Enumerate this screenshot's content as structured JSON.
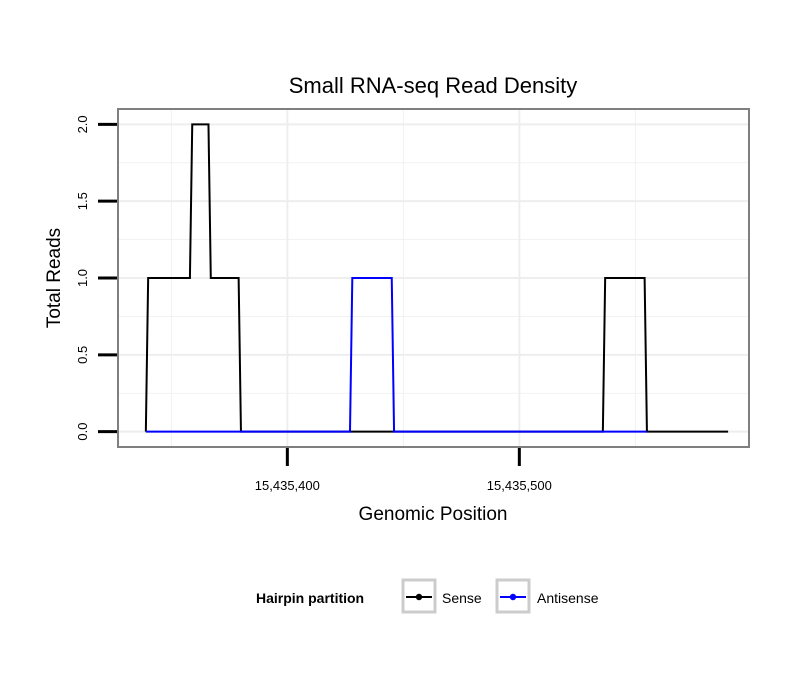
{
  "colors": {
    "sense": "#000000",
    "antisense": "#0000ff",
    "grid": "#eeeeee",
    "panel_border": "#7f7f7f",
    "legend_key_border": "#cccccc"
  },
  "chart_data": {
    "type": "line",
    "title": "Small RNA-seq Read Density",
    "xlabel": "Genomic Position",
    "ylabel": "Total Reads",
    "xlim": [
      15435327,
      15435599
    ],
    "ylim": [
      -0.1,
      2.1
    ],
    "xticks": [
      15435400,
      15435500
    ],
    "xtick_labels": [
      "15,435,400",
      "15,435,500"
    ],
    "yticks": [
      0,
      0.5,
      1,
      1.5,
      2
    ],
    "ytick_labels": [
      "0.0",
      "0.5",
      "1.0",
      "1.5",
      "2.0"
    ],
    "grid": true,
    "legend": {
      "title": "Hairpin partition",
      "position": "bottom",
      "entries": [
        "Sense",
        "Antisense"
      ]
    },
    "series": [
      {
        "name": "Sense",
        "color_key": "sense",
        "x": [
          15435339,
          15435340,
          15435358,
          15435359,
          15435366,
          15435367,
          15435379,
          15435380,
          15435427,
          15435428,
          15435431,
          15435447,
          15435536,
          15435537,
          15435554,
          15435555,
          15435590
        ],
        "y": [
          0,
          1,
          1,
          2,
          2,
          1,
          1,
          0,
          0,
          0,
          0,
          0,
          0,
          1,
          1,
          0,
          0
        ]
      },
      {
        "name": "Antisense",
        "color_key": "antisense",
        "x": [
          15435339,
          15435380,
          15435427,
          15435428,
          15435445,
          15435446,
          15435536,
          15435555
        ],
        "y": [
          0,
          0,
          0,
          1,
          1,
          0,
          0,
          0
        ]
      }
    ]
  }
}
